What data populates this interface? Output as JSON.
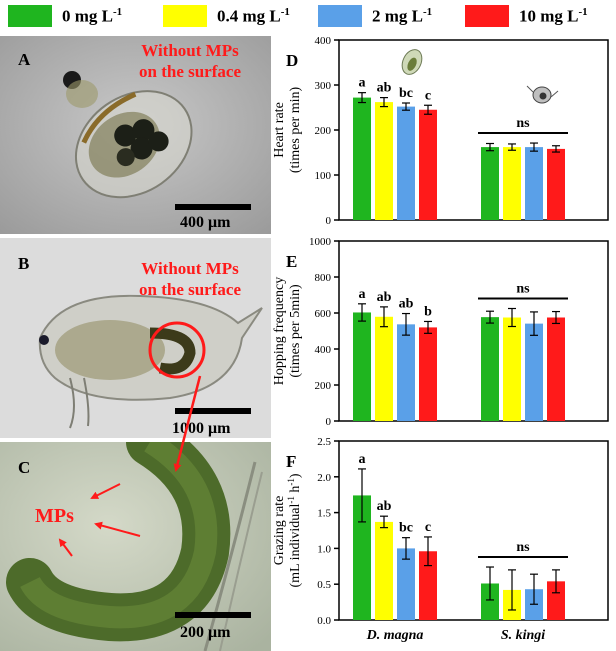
{
  "legend": {
    "items": [
      {
        "label": "0 mg L",
        "sup": "-1",
        "color": "#1fb51f"
      },
      {
        "label": "0.4 mg L",
        "sup": "-1",
        "color": "#ffff00"
      },
      {
        "label": "2 mg L",
        "sup": "-1",
        "color": "#5aa0e8"
      },
      {
        "label": "10 mg L",
        "sup": "-1",
        "color": "#ff1a1a"
      }
    ]
  },
  "photos": {
    "A": {
      "letter": "A",
      "note_line1": "Without MPs",
      "note_line2": "on the surface",
      "scale": "400 μm"
    },
    "B": {
      "letter": "B",
      "note_line1": "Without MPs",
      "note_line2": "on the surface",
      "scale": "1000 μm"
    },
    "C": {
      "letter": "C",
      "label": "MPs",
      "scale": "200 μm"
    }
  },
  "chart_data": [
    {
      "panel": "D",
      "type": "bar",
      "ylabel": [
        "Heart rate",
        "(times per min)"
      ],
      "ylim": [
        0,
        400
      ],
      "yticks": [
        0,
        100,
        200,
        300,
        400
      ],
      "categories": [
        "D. magna",
        "S. kingi"
      ],
      "series": [
        {
          "name": "0 mg L-1",
          "values": [
            272,
            162
          ],
          "errors": [
            11,
            8
          ]
        },
        {
          "name": "0.4 mg L-1",
          "values": [
            262,
            162
          ],
          "errors": [
            10,
            7
          ]
        },
        {
          "name": "2 mg L-1",
          "values": [
            252,
            162
          ],
          "errors": [
            8,
            9
          ]
        },
        {
          "name": "10 mg L-1",
          "values": [
            245,
            158
          ],
          "errors": [
            10,
            7
          ]
        }
      ],
      "letters": [
        [
          "a",
          "ab",
          "bc",
          "c"
        ],
        []
      ],
      "ns": [
        "",
        "ns"
      ]
    },
    {
      "panel": "E",
      "type": "bar",
      "ylabel": [
        "Hopping frequency",
        "(times per 5min)"
      ],
      "ylim": [
        0,
        1000
      ],
      "yticks": [
        0,
        200,
        400,
        600,
        800,
        1000
      ],
      "categories": [
        "D. magna",
        "S. kingi"
      ],
      "series": [
        {
          "name": "0 mg L-1",
          "values": [
            603,
            577
          ],
          "errors": [
            48,
            33
          ]
        },
        {
          "name": "0.4 mg L-1",
          "values": [
            579,
            575
          ],
          "errors": [
            55,
            50
          ]
        },
        {
          "name": "2 mg L-1",
          "values": [
            537,
            541
          ],
          "errors": [
            60,
            65
          ]
        },
        {
          "name": "10 mg L-1",
          "values": [
            520,
            575
          ],
          "errors": [
            33,
            33
          ]
        }
      ],
      "letters": [
        [
          "a",
          "ab",
          "ab",
          "b"
        ],
        []
      ],
      "ns": [
        "",
        "ns"
      ]
    },
    {
      "panel": "F",
      "type": "bar",
      "ylabel": [
        "Grazing rate",
        "(mL individual",
        "-1",
        " h",
        "-1",
        ")"
      ],
      "ylim": [
        0,
        2.5
      ],
      "yticks": [
        0.0,
        0.5,
        1.0,
        1.5,
        2.0,
        2.5
      ],
      "categories": [
        "D. magna",
        "S. kingi"
      ],
      "series": [
        {
          "name": "0 mg L-1",
          "values": [
            1.74,
            0.51
          ],
          "errors": [
            0.37,
            0.23
          ]
        },
        {
          "name": "0.4 mg L-1",
          "values": [
            1.37,
            0.42
          ],
          "errors": [
            0.08,
            0.28
          ]
        },
        {
          "name": "2 mg L-1",
          "values": [
            1.0,
            0.43
          ],
          "errors": [
            0.15,
            0.21
          ]
        },
        {
          "name": "10 mg L-1",
          "values": [
            0.96,
            0.54
          ],
          "errors": [
            0.2,
            0.16
          ]
        }
      ],
      "letters": [
        [
          "a",
          "ab",
          "bc",
          "c"
        ],
        []
      ],
      "ns": [
        "",
        "ns"
      ]
    }
  ]
}
